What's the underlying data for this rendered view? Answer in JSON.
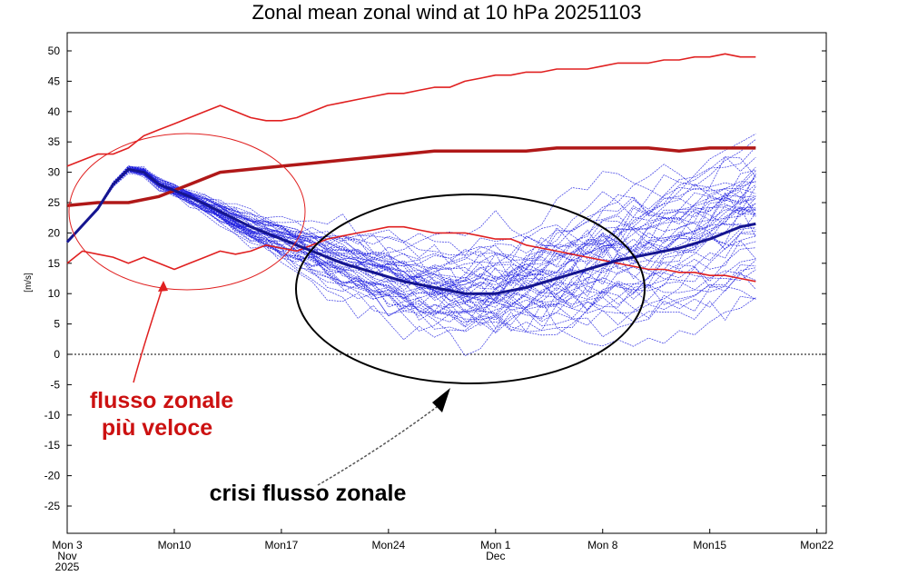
{
  "chart_data": {
    "type": "line",
    "title": "Zonal mean zonal wind at 10 hPa 20251103",
    "ylabel": "[m/s]",
    "xlabel": "",
    "ylim": [
      -30,
      53
    ],
    "xlim": [
      0,
      49
    ],
    "grid": false,
    "x_ticks": [
      {
        "day": 0,
        "lines": [
          "Mon 3",
          "Nov",
          "2025"
        ]
      },
      {
        "day": 7,
        "lines": [
          "Mon10"
        ]
      },
      {
        "day": 14,
        "lines": [
          "Mon17"
        ]
      },
      {
        "day": 21,
        "lines": [
          "Mon24"
        ]
      },
      {
        "day": 28,
        "lines": [
          "Mon 1",
          "Dec"
        ]
      },
      {
        "day": 35,
        "lines": [
          "Mon 8"
        ]
      },
      {
        "day": 42,
        "lines": [
          "Mon15"
        ]
      },
      {
        "day": 49,
        "lines": [
          "Mon22"
        ]
      }
    ],
    "y_ticks": [
      -25,
      -20,
      -15,
      -10,
      -5,
      0,
      5,
      10,
      15,
      20,
      25,
      30,
      35,
      40,
      45,
      50
    ],
    "colors": {
      "climatology": "#e02020",
      "climatology_mean": "#b01818",
      "ensemble": "#2020e0",
      "ensemble_mean": "#151590",
      "annotation_red": "#cc1111",
      "annotation_black": "#000000"
    },
    "series": [
      {
        "name": "",
        "role": "climatology-max",
        "x": [
          0,
          1,
          2,
          3,
          4,
          5,
          6,
          7,
          8,
          9,
          10,
          11,
          12,
          13,
          14,
          15,
          16,
          17,
          18,
          19,
          20,
          21,
          22,
          23,
          24,
          25,
          26,
          27,
          28,
          29,
          30,
          31,
          32,
          33,
          34,
          35,
          36,
          37,
          38,
          39,
          40,
          41,
          42,
          43,
          44,
          45
        ],
        "y": [
          31,
          32,
          33,
          33,
          34,
          36,
          37,
          38,
          39,
          40,
          41,
          40,
          39,
          38.5,
          38.5,
          39,
          40,
          41,
          41.5,
          42,
          42.5,
          43,
          43,
          43.5,
          44,
          44,
          45,
          45.5,
          46,
          46,
          46.5,
          46.5,
          47,
          47,
          47,
          47.5,
          48,
          48,
          48,
          48.5,
          48.5,
          49,
          49,
          49.5,
          49,
          49
        ]
      },
      {
        "name": "",
        "role": "climatology-mean",
        "x": [
          0,
          2,
          4,
          6,
          8,
          10,
          12,
          14,
          16,
          18,
          20,
          22,
          24,
          26,
          28,
          30,
          32,
          34,
          36,
          38,
          40,
          42,
          44,
          45
        ],
        "y": [
          24.5,
          25,
          25,
          26,
          28,
          30,
          30.5,
          31,
          31.5,
          32,
          32.5,
          33,
          33.5,
          33.5,
          33.5,
          33.5,
          34,
          34,
          34,
          34,
          33.5,
          34,
          34,
          34
        ]
      },
      {
        "name": "",
        "role": "climatology-min",
        "x": [
          0,
          1,
          2,
          3,
          4,
          5,
          6,
          7,
          8,
          9,
          10,
          11,
          12,
          13,
          14,
          15,
          16,
          17,
          18,
          19,
          20,
          21,
          22,
          23,
          24,
          25,
          26,
          27,
          28,
          29,
          30,
          31,
          32,
          33,
          34,
          35,
          36,
          37,
          38,
          39,
          40,
          41,
          42,
          43,
          44,
          45
        ],
        "y": [
          15,
          17,
          16.5,
          16,
          15,
          16,
          15,
          14,
          15,
          16,
          17,
          16.5,
          17,
          18,
          17.5,
          17,
          18,
          19,
          19.5,
          20,
          20.5,
          21,
          21,
          20.5,
          20,
          20,
          20,
          19.5,
          19,
          19,
          18,
          17.5,
          17,
          16.5,
          16,
          15.5,
          15,
          14.5,
          14,
          14,
          13.5,
          13.5,
          13,
          13,
          12.5,
          12
        ]
      },
      {
        "name": "",
        "role": "ensemble-mean",
        "x": [
          0,
          2,
          3,
          4,
          5,
          6,
          8,
          10,
          12,
          14,
          16,
          18,
          20,
          22,
          24,
          26,
          28,
          30,
          32,
          34,
          36,
          38,
          40,
          42,
          43,
          44,
          45
        ],
        "y": [
          18.5,
          24,
          28,
          30.5,
          30,
          28,
          26,
          23.5,
          21,
          19,
          17,
          15,
          13.5,
          12,
          11,
          10,
          10,
          11,
          12.5,
          14,
          15.5,
          16.5,
          17.5,
          19,
          20,
          21,
          21.5
        ]
      }
    ],
    "ensemble_members": 51,
    "zero_line": true,
    "annotations": [
      {
        "text_lines": [
          "flusso zonale",
          "più veloce"
        ],
        "color": "red"
      },
      {
        "text_lines": [
          "crisi flusso zonale"
        ],
        "color": "black"
      }
    ]
  }
}
